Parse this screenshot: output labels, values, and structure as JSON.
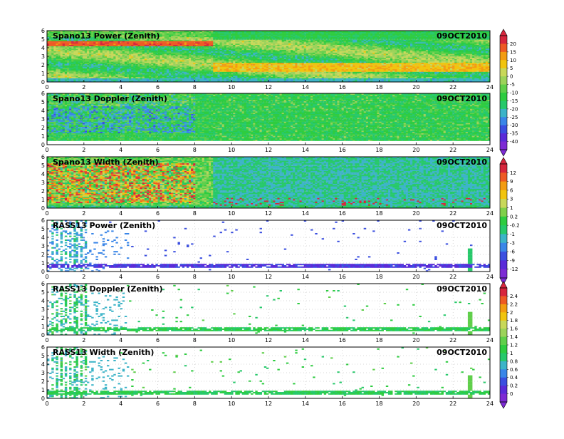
{
  "chart_data": {
    "type": "heatmap",
    "x_ticks": [
      0,
      2,
      4,
      6,
      8,
      10,
      12,
      14,
      16,
      18,
      20,
      22,
      24
    ],
    "y_ticks": [
      0,
      1,
      2,
      3,
      4,
      5,
      6
    ],
    "xlim": [
      0,
      24
    ],
    "ylim": [
      0,
      6
    ],
    "grid": true,
    "panels": [
      {
        "title": "Spano13 Power (Zenith)",
        "date": "09OCT2010",
        "colorbar": 0,
        "pattern": "power"
      },
      {
        "title": "Spano13 Doppler (Zenith)",
        "date": "09OCT2010",
        "colorbar": 0,
        "pattern": "doppler"
      },
      {
        "title": "Spano13 Width (Zenith)",
        "date": "09OCT2010",
        "colorbar": 1,
        "pattern": "width"
      },
      {
        "title": "RASS13 Power (Zenith)",
        "date": "09OCT2010",
        "colorbar": 1,
        "pattern": "rass_power"
      },
      {
        "title": "RASS13 Doppler (Zenith)",
        "date": "09OCT2010",
        "colorbar": 2,
        "pattern": "rass_doppler"
      },
      {
        "title": "RASS13 Width (Zenith)",
        "date": "09OCT2010",
        "colorbar": 2,
        "pattern": "rass_width"
      }
    ],
    "colorbars": [
      {
        "labels": [
          "20",
          "15",
          "10",
          "5",
          "0",
          "-5",
          "-10",
          "-15",
          "-20",
          "-25",
          "-30",
          "-35",
          "-40"
        ],
        "colors": [
          "#d7263d",
          "#ee5a24",
          "#f39c12",
          "#f1c40f",
          "#c8d85a",
          "#9cd35a",
          "#5fcf4a",
          "#2ecc40",
          "#27c96b",
          "#3cb4c8",
          "#3a86e8",
          "#3b4fe0",
          "#5a2bd8",
          "#7d2bd4"
        ]
      },
      {
        "labels": [
          "12",
          "9",
          "6",
          "3",
          "1",
          "0.2",
          "-0.2",
          "-1",
          "-3",
          "-6",
          "-9",
          "-12"
        ],
        "colors": [
          "#d7263d",
          "#ee5a24",
          "#f39c12",
          "#f1c40f",
          "#c8d85a",
          "#7fd04a",
          "#2ecc40",
          "#27c96b",
          "#3cb4c8",
          "#3a86e8",
          "#3b4fe0",
          "#5a2bd8",
          "#7d2bd4"
        ]
      },
      {
        "labels": [
          "2.4",
          "2.2",
          "2",
          "1.8",
          "1.6",
          "1.4",
          "1.2",
          "1",
          "0.8",
          "0.6",
          "0.4",
          "0.2",
          "0"
        ],
        "colors": [
          "#d7263d",
          "#ee5a24",
          "#f39c12",
          "#f1c40f",
          "#c8d85a",
          "#9cd35a",
          "#5fcf4a",
          "#2ecc40",
          "#27c96b",
          "#3cb4c8",
          "#3a86e8",
          "#3b4fe0",
          "#5a2bd8",
          "#7d2bd4"
        ]
      }
    ]
  }
}
